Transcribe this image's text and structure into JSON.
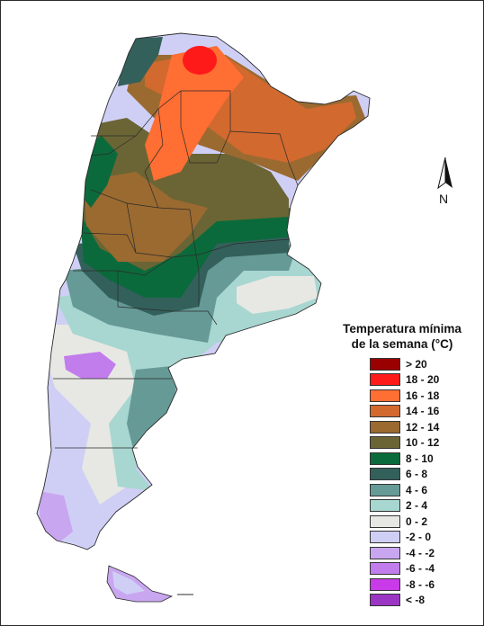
{
  "north_label": "N",
  "legend": {
    "title_line1": "Temperatura mínima",
    "title_line2": "de la semana (°C)",
    "items": [
      {
        "label": "> 20",
        "color": "#9b0000"
      },
      {
        "label": "18 - 20",
        "color": "#ff1a1a"
      },
      {
        "label": "16 - 18",
        "color": "#ff6e33"
      },
      {
        "label": "14 - 16",
        "color": "#d2692f"
      },
      {
        "label": "12 - 14",
        "color": "#9b6a30"
      },
      {
        "label": "10 - 12",
        "color": "#6b6535"
      },
      {
        "label": "8 - 10",
        "color": "#0b6a3b"
      },
      {
        "label": "6 - 8",
        "color": "#33605b"
      },
      {
        "label": "4 - 6",
        "color": "#669a96"
      },
      {
        "label": "2 - 4",
        "color": "#a8d6d1"
      },
      {
        "label": "0 - 2",
        "color": "#e7e8e3"
      },
      {
        "label": "-2 - 0",
        "color": "#cfcff6"
      },
      {
        "label": "-4 - -2",
        "color": "#c9a6f0"
      },
      {
        "label": "-6 - -4",
        "color": "#c27ded"
      },
      {
        "label": "-8 - -6",
        "color": "#c93ae8"
      },
      {
        "label": "< -8",
        "color": "#9b35c4"
      }
    ]
  }
}
